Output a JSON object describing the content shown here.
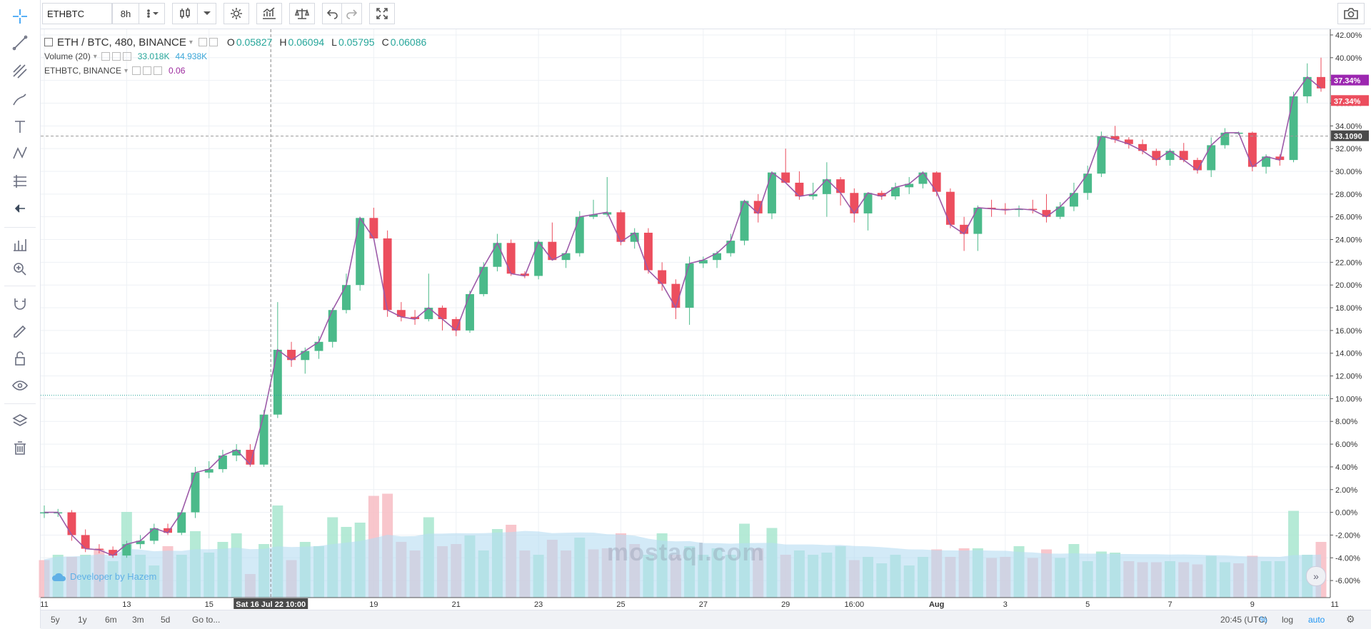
{
  "toolbar": {
    "symbol": "ETHBTC",
    "interval": "8h"
  },
  "legend": {
    "main_title": "ETH / BTC, 480, BINANCE",
    "o_label": "O",
    "o_value": "0.05827",
    "h_label": "H",
    "h_value": "0.06094",
    "l_label": "L",
    "l_value": "0.05795",
    "c_label": "C",
    "c_value": "0.06086",
    "volume_label": "Volume (20)",
    "volume_value1": "33.018K",
    "volume_value2": "44.938K",
    "compare_label": "ETHBTC, BINANCE",
    "compare_value": "0.06"
  },
  "colors": {
    "up": "#4bba8a",
    "down": "#ec4e5e",
    "vol_up": "#a8e6cf",
    "vol_down": "#f7bcc3",
    "vol_ma": "#b5dcf2",
    "compare_line": "#9c5aa8",
    "grid": "#eef1f5"
  },
  "chart_data": {
    "type": "candlestick",
    "y_unit": "percent change",
    "ylim": [
      -7.5,
      42.5
    ],
    "y_ticks": [
      "-6.00%",
      "-4.00%",
      "-2.00%",
      "0.00%",
      "2.00%",
      "4.00%",
      "6.00%",
      "8.00%",
      "10.00%",
      "12.00%",
      "14.00%",
      "16.00%",
      "18.00%",
      "20.00%",
      "22.00%",
      "24.00%",
      "26.00%",
      "28.00%",
      "30.00%",
      "32.00%",
      "34.00%",
      "36.00%",
      "38.00%",
      "40.00%",
      "42.00%"
    ],
    "x_ticks": [
      "11",
      "13",
      "15",
      "19",
      "21",
      "23",
      "25",
      "27",
      "29",
      "16:00",
      "Aug",
      "3",
      "5",
      "7",
      "9",
      "11"
    ],
    "crosshair_label": "Sat 16 Jul 22 10:00",
    "price_marker": "33.1090",
    "last_value_labels": [
      "37.34%",
      "37.34%"
    ],
    "reference_line": 10.3,
    "candles": [
      [
        0.0,
        0.6,
        -0.5,
        0.0
      ],
      [
        0.0,
        0.3,
        -0.4,
        0.0
      ],
      [
        0.0,
        0.2,
        -2.5,
        -2.0
      ],
      [
        -2.0,
        -1.5,
        -3.5,
        -3.2
      ],
      [
        -3.2,
        -2.8,
        -3.6,
        -3.3
      ],
      [
        -3.3,
        -3.0,
        -4.0,
        -3.8
      ],
      [
        -3.8,
        -2.5,
        -4.0,
        -2.8
      ],
      [
        -2.8,
        -2.0,
        -3.2,
        -2.5
      ],
      [
        -2.5,
        -1.0,
        -2.8,
        -1.4
      ],
      [
        -1.4,
        -1.0,
        -2.0,
        -1.8
      ],
      [
        -1.8,
        0.2,
        -2.0,
        0.0
      ],
      [
        0.0,
        4.0,
        -0.5,
        3.5
      ],
      [
        3.5,
        4.5,
        3.0,
        3.8
      ],
      [
        3.8,
        5.5,
        3.5,
        5.0
      ],
      [
        5.0,
        6.0,
        4.5,
        5.5
      ],
      [
        5.5,
        6.0,
        4.0,
        4.2
      ],
      [
        4.2,
        9.0,
        4.0,
        8.6
      ],
      [
        8.6,
        18.5,
        8.3,
        14.3
      ],
      [
        14.3,
        15.0,
        12.8,
        13.4
      ],
      [
        13.4,
        14.5,
        12.2,
        14.2
      ],
      [
        14.2,
        15.5,
        13.5,
        15.0
      ],
      [
        15.0,
        18.0,
        14.5,
        17.8
      ],
      [
        17.8,
        21.0,
        17.5,
        20.0
      ],
      [
        20.0,
        26.0,
        19.5,
        25.9
      ],
      [
        25.9,
        26.8,
        24.0,
        24.1
      ],
      [
        24.1,
        24.8,
        17.2,
        17.8
      ],
      [
        17.8,
        18.5,
        16.8,
        17.2
      ],
      [
        17.2,
        17.8,
        16.5,
        17.0
      ],
      [
        17.0,
        21.0,
        16.8,
        18.0
      ],
      [
        18.0,
        18.2,
        16.0,
        17.0
      ],
      [
        17.0,
        17.2,
        15.5,
        16.0
      ],
      [
        16.0,
        19.5,
        15.8,
        19.2
      ],
      [
        19.2,
        22.0,
        19.0,
        21.6
      ],
      [
        21.6,
        24.5,
        21.2,
        23.7
      ],
      [
        23.7,
        24.0,
        20.8,
        21.0
      ],
      [
        21.0,
        21.2,
        20.6,
        20.8
      ],
      [
        20.8,
        24.0,
        20.5,
        23.8
      ],
      [
        23.8,
        25.5,
        22.5,
        22.2
      ],
      [
        22.2,
        23.0,
        21.5,
        22.8
      ],
      [
        22.8,
        26.5,
        22.5,
        26.0
      ],
      [
        26.0,
        27.5,
        25.8,
        26.2
      ],
      [
        26.2,
        29.5,
        26.0,
        26.4
      ],
      [
        26.4,
        26.6,
        23.5,
        23.8
      ],
      [
        23.8,
        25.0,
        23.2,
        24.6
      ],
      [
        24.6,
        25.0,
        21.0,
        21.3
      ],
      [
        21.3,
        22.0,
        19.5,
        20.1
      ],
      [
        20.1,
        20.5,
        17.0,
        18.0
      ],
      [
        18.0,
        22.5,
        16.5,
        21.9
      ],
      [
        21.9,
        22.5,
        21.5,
        22.2
      ],
      [
        22.2,
        23.0,
        21.5,
        22.8
      ],
      [
        22.8,
        24.5,
        22.5,
        23.9
      ],
      [
        23.9,
        27.5,
        23.5,
        27.4
      ],
      [
        27.4,
        28.0,
        25.5,
        26.3
      ],
      [
        26.3,
        30.0,
        25.8,
        29.9
      ],
      [
        29.9,
        32.0,
        29.0,
        29.0
      ],
      [
        29.0,
        30.0,
        27.5,
        27.8
      ],
      [
        27.8,
        29.0,
        27.5,
        28.0
      ],
      [
        28.0,
        30.8,
        26.0,
        29.3
      ],
      [
        29.3,
        29.5,
        27.0,
        28.1
      ],
      [
        28.1,
        28.5,
        25.5,
        26.3
      ],
      [
        26.3,
        28.0,
        24.8,
        28.1
      ],
      [
        28.1,
        28.3,
        27.5,
        27.8
      ],
      [
        27.8,
        29.0,
        27.5,
        28.6
      ],
      [
        28.6,
        29.5,
        28.0,
        28.9
      ],
      [
        28.9,
        30.0,
        28.5,
        29.9
      ],
      [
        29.9,
        30.0,
        27.8,
        28.2
      ],
      [
        28.2,
        28.5,
        25.0,
        25.3
      ],
      [
        25.3,
        26.0,
        23.0,
        24.5
      ],
      [
        24.5,
        27.0,
        23.0,
        26.8
      ],
      [
        26.8,
        27.5,
        26.0,
        26.7
      ],
      [
        26.7,
        27.2,
        26.2,
        26.6
      ],
      [
        26.6,
        27.0,
        26.0,
        26.7
      ],
      [
        26.7,
        27.5,
        26.3,
        26.6
      ],
      [
        26.6,
        28.0,
        25.5,
        26.0
      ],
      [
        26.0,
        27.3,
        25.8,
        26.9
      ],
      [
        26.9,
        29.0,
        26.5,
        28.1
      ],
      [
        28.1,
        30.5,
        27.5,
        29.8
      ],
      [
        29.8,
        33.5,
        29.5,
        33.1
      ],
      [
        33.1,
        34.0,
        32.5,
        32.8
      ],
      [
        32.8,
        33.0,
        32.0,
        32.4
      ],
      [
        32.4,
        32.8,
        31.5,
        31.8
      ],
      [
        31.8,
        32.0,
        30.5,
        31.0
      ],
      [
        31.0,
        32.0,
        30.5,
        31.8
      ],
      [
        31.8,
        32.5,
        30.8,
        31.0
      ],
      [
        31.0,
        31.2,
        29.8,
        30.1
      ],
      [
        30.1,
        33.0,
        29.5,
        32.3
      ],
      [
        32.3,
        33.8,
        32.0,
        33.4
      ],
      [
        33.4,
        33.5,
        33.2,
        33.4
      ],
      [
        33.4,
        33.5,
        30.0,
        30.4
      ],
      [
        30.4,
        31.5,
        29.8,
        31.3
      ],
      [
        31.3,
        31.5,
        30.5,
        31.0
      ],
      [
        31.0,
        37.0,
        30.8,
        36.6
      ],
      [
        36.6,
        39.5,
        36.0,
        38.3
      ],
      [
        38.3,
        40.0,
        37.0,
        37.3
      ]
    ],
    "volumes": [
      [
        0.35,
        0
      ],
      [
        0.4,
        1
      ],
      [
        0.38,
        0
      ],
      [
        0.4,
        1
      ],
      [
        0.45,
        0
      ],
      [
        0.34,
        1
      ],
      [
        0.8,
        1
      ],
      [
        0.4,
        1
      ],
      [
        0.3,
        1
      ],
      [
        0.48,
        0
      ],
      [
        0.4,
        1
      ],
      [
        0.62,
        1
      ],
      [
        0.42,
        1
      ],
      [
        0.52,
        1
      ],
      [
        0.6,
        1
      ],
      [
        0.22,
        0
      ],
      [
        0.5,
        1
      ],
      [
        0.86,
        1
      ],
      [
        0.35,
        0
      ],
      [
        0.52,
        1
      ],
      [
        0.48,
        1
      ],
      [
        0.75,
        1
      ],
      [
        0.66,
        1
      ],
      [
        0.7,
        1
      ],
      [
        0.95,
        0
      ],
      [
        0.97,
        0
      ],
      [
        0.52,
        0
      ],
      [
        0.44,
        0
      ],
      [
        0.75,
        1
      ],
      [
        0.48,
        0
      ],
      [
        0.5,
        0
      ],
      [
        0.58,
        1
      ],
      [
        0.44,
        1
      ],
      [
        0.64,
        1
      ],
      [
        0.68,
        0
      ],
      [
        0.44,
        0
      ],
      [
        0.4,
        1
      ],
      [
        0.54,
        0
      ],
      [
        0.44,
        0
      ],
      [
        0.56,
        1
      ],
      [
        0.45,
        0
      ],
      [
        0.46,
        0
      ],
      [
        0.6,
        0
      ],
      [
        0.5,
        0
      ],
      [
        0.4,
        1
      ],
      [
        0.6,
        1
      ],
      [
        0.4,
        0
      ],
      [
        0.48,
        1
      ],
      [
        0.4,
        1
      ],
      [
        0.46,
        1
      ],
      [
        0.4,
        1
      ],
      [
        0.69,
        1
      ],
      [
        0.46,
        0
      ],
      [
        0.65,
        1
      ],
      [
        0.4,
        0
      ],
      [
        0.44,
        1
      ],
      [
        0.4,
        1
      ],
      [
        0.42,
        1
      ],
      [
        0.48,
        1
      ],
      [
        0.35,
        0
      ],
      [
        0.38,
        1
      ],
      [
        0.32,
        1
      ],
      [
        0.4,
        1
      ],
      [
        0.3,
        1
      ],
      [
        0.38,
        1
      ],
      [
        0.45,
        0
      ],
      [
        0.38,
        0
      ],
      [
        0.46,
        0
      ],
      [
        0.46,
        1
      ],
      [
        0.37,
        0
      ],
      [
        0.38,
        0
      ],
      [
        0.48,
        1
      ],
      [
        0.37,
        0
      ],
      [
        0.45,
        0
      ],
      [
        0.37,
        1
      ],
      [
        0.5,
        1
      ],
      [
        0.34,
        1
      ],
      [
        0.43,
        1
      ],
      [
        0.42,
        1
      ],
      [
        0.34,
        0
      ],
      [
        0.33,
        0
      ],
      [
        0.33,
        0
      ],
      [
        0.34,
        1
      ],
      [
        0.33,
        0
      ],
      [
        0.31,
        0
      ],
      [
        0.39,
        1
      ],
      [
        0.33,
        1
      ],
      [
        0.32,
        0
      ],
      [
        0.39,
        0
      ],
      [
        0.34,
        1
      ],
      [
        0.34,
        1
      ],
      [
        0.81,
        1
      ],
      [
        0.4,
        1
      ],
      [
        0.52,
        0
      ]
    ]
  },
  "bottom": {
    "ranges": [
      "5y",
      "1y",
      "6m",
      "3m",
      "5d"
    ],
    "goto": "Go to...",
    "time": "20:45 (UTC)",
    "scale_percent": "%",
    "scale_log": "log",
    "scale_auto": "auto"
  },
  "branding": {
    "developer": "Developer by Hazem",
    "watermark": "mostaql.com"
  }
}
